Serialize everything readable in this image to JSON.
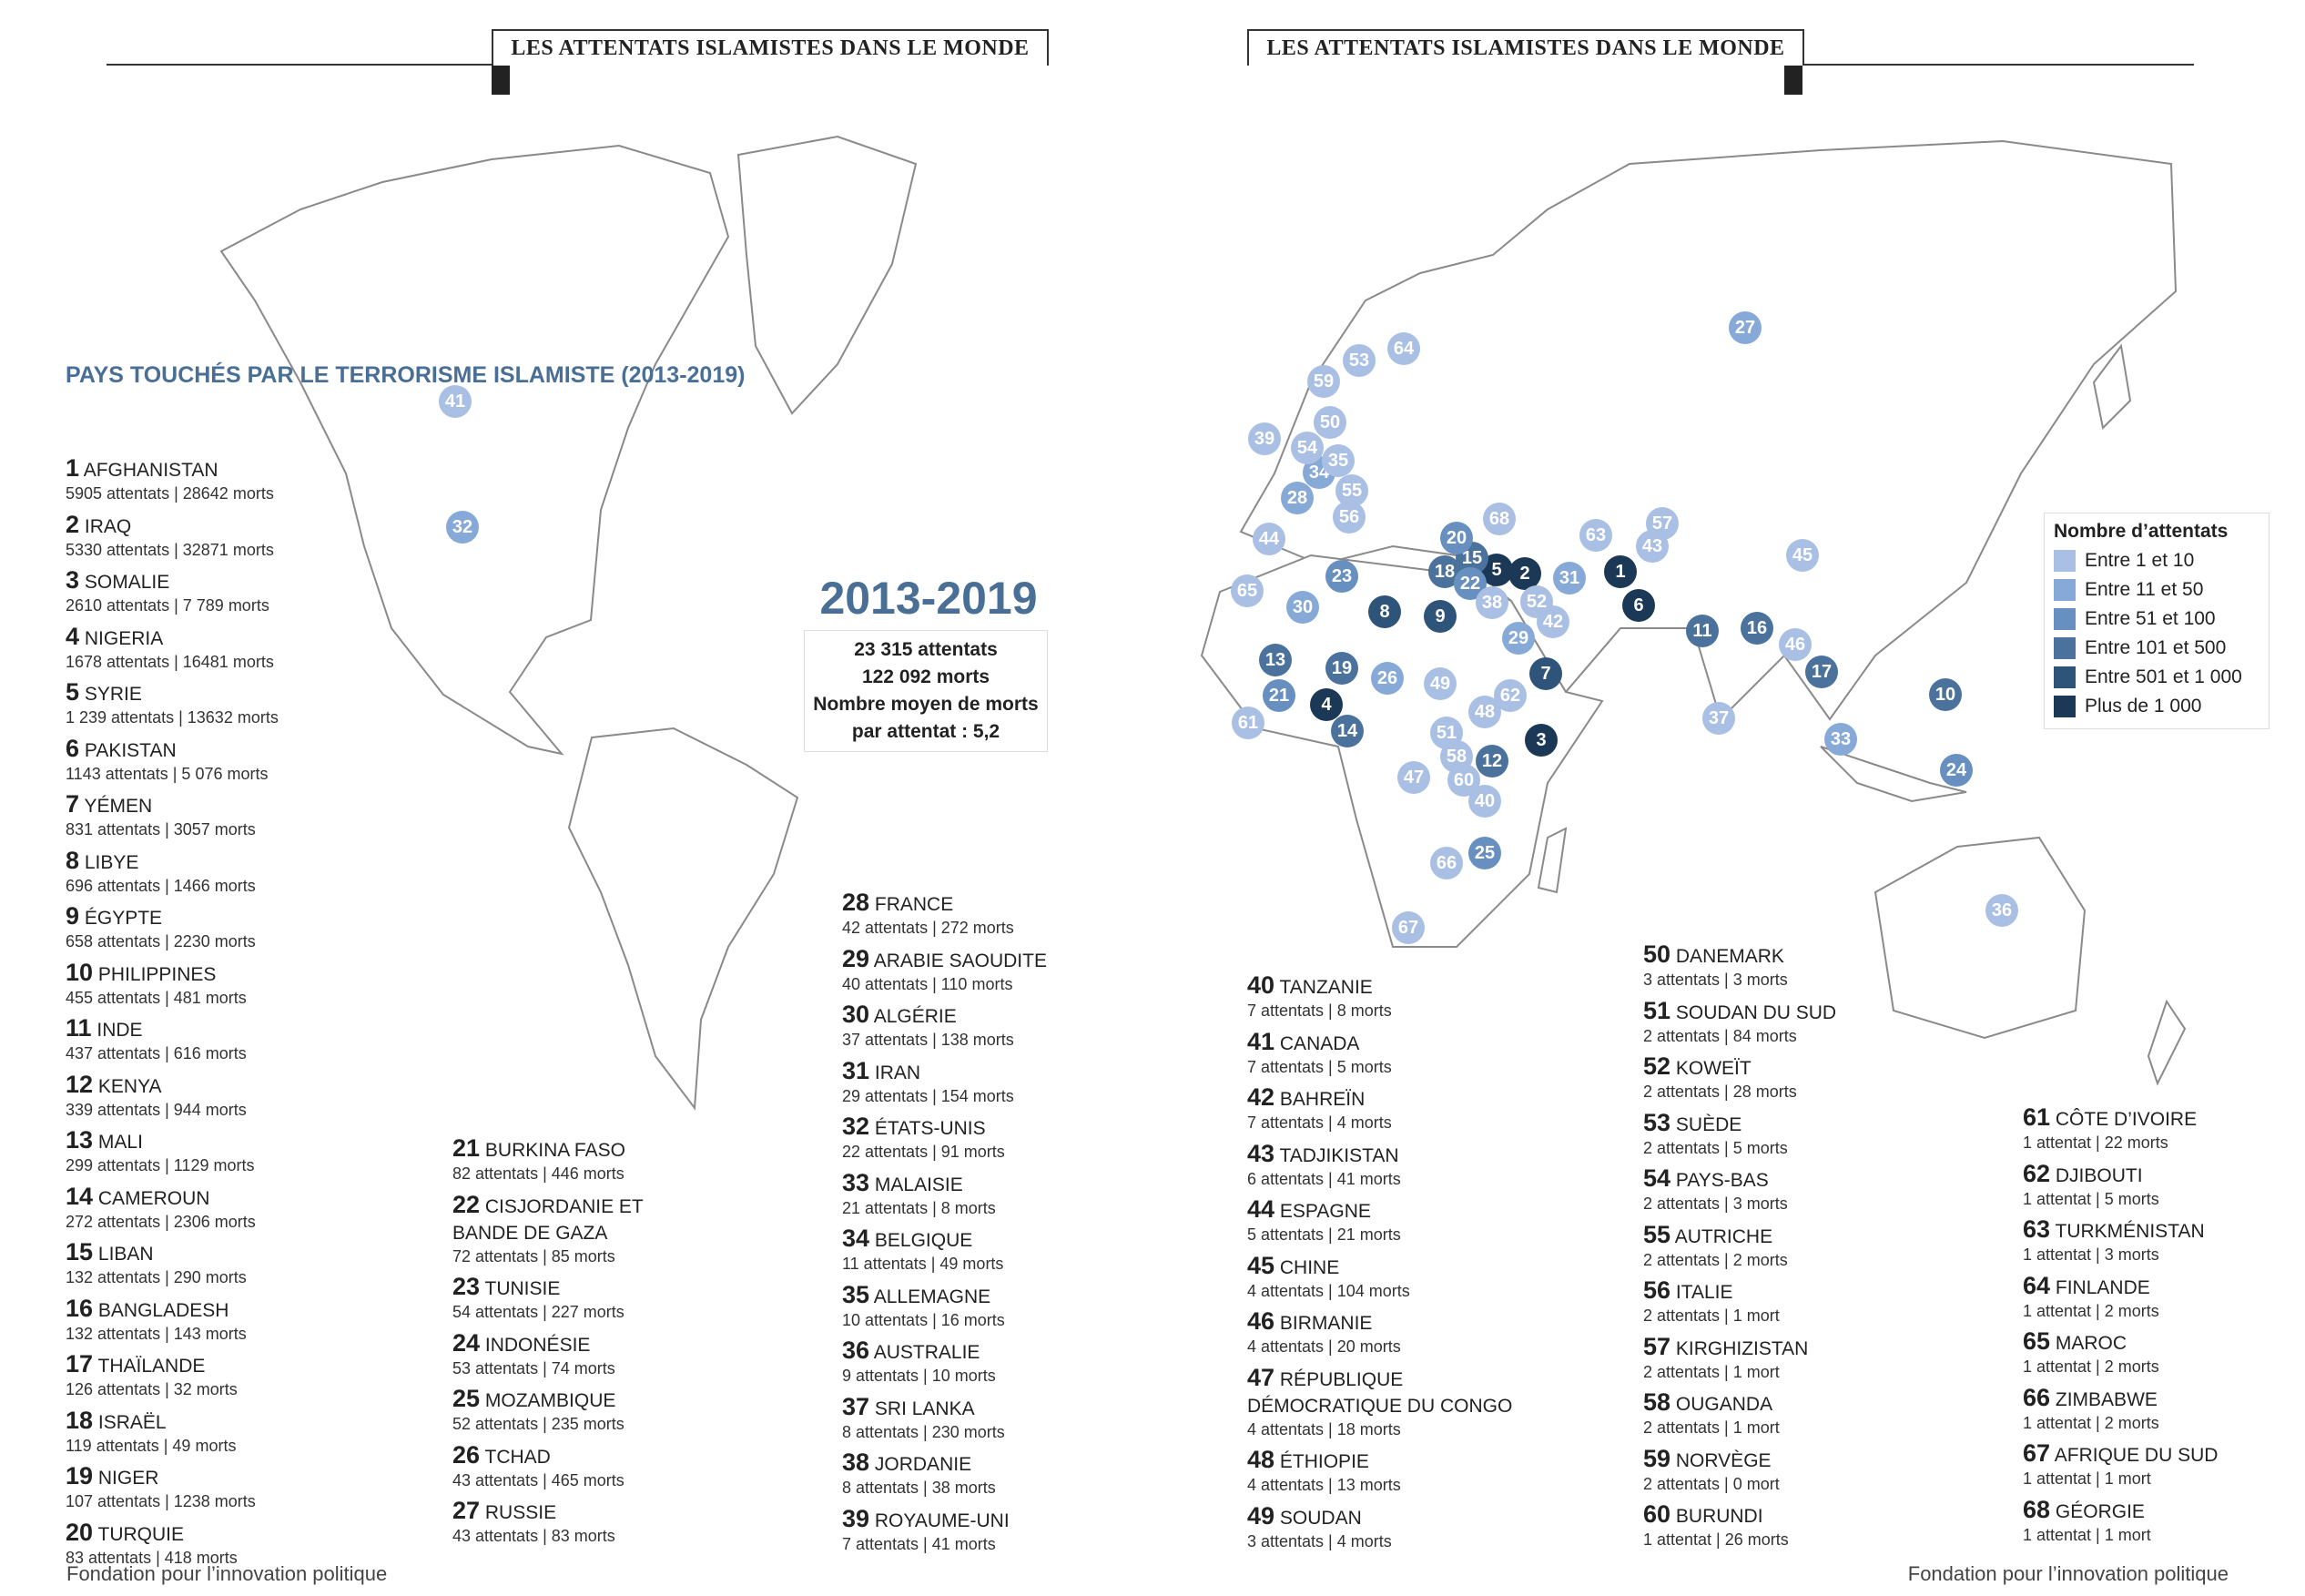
{
  "header": {
    "left_title": "LES ATTENTATS ISLAMISTES DANS LE MONDE",
    "right_title": "LES ATTENTATS ISLAMISTES DANS LE MONDE"
  },
  "subtitle": "Pays touchés par le terrorisme islamiste (2013-2019)",
  "summary": {
    "period": "2013-2019",
    "attacks": "23 315 attentats",
    "deaths": "122 092 morts",
    "average": "Nombre moyen de morts par attentat : 5,2"
  },
  "legend": {
    "title": "Nombre d’attentats",
    "items": [
      {
        "label": "Entre 1 et 10",
        "color": "#a9bfe4"
      },
      {
        "label": "Entre 11 et 50",
        "color": "#86a9d8"
      },
      {
        "label": "Entre 51 et 100",
        "color": "#6790c1"
      },
      {
        "label": "Entre 101 et 500",
        "color": "#4a729c"
      },
      {
        "label": "Entre 501 et 1 000",
        "color": "#2f5479"
      },
      {
        "label": "Plus de 1 000",
        "color": "#1b3857"
      }
    ]
  },
  "countries": [
    {
      "rank": "1",
      "name": "Afghanistan",
      "attacks": 5905,
      "stats": "5905 attentats | 28642 morts"
    },
    {
      "rank": "2",
      "name": "Iraq",
      "attacks": 5330,
      "stats": "5330 attentats | 32871 morts"
    },
    {
      "rank": "3",
      "name": "Somalie",
      "attacks": 2610,
      "stats": "2610 attentats | 7 789 morts"
    },
    {
      "rank": "4",
      "name": "Nigeria",
      "attacks": 1678,
      "stats": "1678 attentats | 16481 morts"
    },
    {
      "rank": "5",
      "name": "Syrie",
      "attacks": 1239,
      "stats": "1 239 attentats | 13632 morts"
    },
    {
      "rank": "6",
      "name": "Pakistan",
      "attacks": 1143,
      "stats": "1143 attentats | 5 076 morts"
    },
    {
      "rank": "7",
      "name": "Yémen",
      "attacks": 831,
      "stats": "831 attentats | 3057 morts"
    },
    {
      "rank": "8",
      "name": "Libye",
      "attacks": 696,
      "stats": "696 attentats | 1466 morts"
    },
    {
      "rank": "9",
      "name": "Égypte",
      "attacks": 658,
      "stats": "658 attentats | 2230 morts"
    },
    {
      "rank": "10",
      "name": "Philippines",
      "attacks": 455,
      "stats": "455 attentats | 481 morts"
    },
    {
      "rank": "11",
      "name": "Inde",
      "attacks": 437,
      "stats": "437 attentats | 616 morts"
    },
    {
      "rank": "12",
      "name": "Kenya",
      "attacks": 339,
      "stats": "339 attentats | 944 morts"
    },
    {
      "rank": "13",
      "name": "Mali",
      "attacks": 299,
      "stats": "299 attentats | 1129 morts"
    },
    {
      "rank": "14",
      "name": "Cameroun",
      "attacks": 272,
      "stats": "272 attentats | 2306 morts"
    },
    {
      "rank": "15",
      "name": "Liban",
      "attacks": 132,
      "stats": "132 attentats | 290 morts"
    },
    {
      "rank": "16",
      "name": "Bangladesh",
      "attacks": 132,
      "stats": "132 attentats | 143 morts"
    },
    {
      "rank": "17",
      "name": "Thaïlande",
      "attacks": 126,
      "stats": "126 attentats | 32 morts"
    },
    {
      "rank": "18",
      "name": "Israël",
      "attacks": 119,
      "stats": "119 attentats | 49 morts"
    },
    {
      "rank": "19",
      "name": "Niger",
      "attacks": 107,
      "stats": "107 attentats | 1238 morts"
    },
    {
      "rank": "20",
      "name": "Turquie",
      "attacks": 83,
      "stats": "83 attentats | 418 morts"
    },
    {
      "rank": "21",
      "name": "Burkina Faso",
      "attacks": 82,
      "stats": "82 attentats | 446 morts"
    },
    {
      "rank": "22",
      "name": "Cisjordanie et bande de Gaza",
      "attacks": 72,
      "stats": "72 attentats | 85 morts"
    },
    {
      "rank": "23",
      "name": "Tunisie",
      "attacks": 54,
      "stats": "54 attentats | 227 morts"
    },
    {
      "rank": "24",
      "name": "Indonésie",
      "attacks": 53,
      "stats": "53 attentats | 74 morts"
    },
    {
      "rank": "25",
      "name": "Mozambique",
      "attacks": 52,
      "stats": "52 attentats | 235 morts"
    },
    {
      "rank": "26",
      "name": "Tchad",
      "attacks": 43,
      "stats": "43 attentats | 465 morts"
    },
    {
      "rank": "27",
      "name": "Russie",
      "attacks": 43,
      "stats": "43 attentats | 83 morts"
    },
    {
      "rank": "28",
      "name": "France",
      "attacks": 42,
      "stats": "42 attentats | 272 morts"
    },
    {
      "rank": "29",
      "name": "Arabie saoudite",
      "attacks": 40,
      "stats": "40 attentats | 110 morts"
    },
    {
      "rank": "30",
      "name": "Algérie",
      "attacks": 37,
      "stats": "37 attentats | 138 morts"
    },
    {
      "rank": "31",
      "name": "Iran",
      "attacks": 29,
      "stats": "29 attentats | 154 morts"
    },
    {
      "rank": "32",
      "name": "États-Unis",
      "attacks": 22,
      "stats": "22 attentats | 91 morts"
    },
    {
      "rank": "33",
      "name": "Malaisie",
      "attacks": 21,
      "stats": "21 attentats | 8 morts"
    },
    {
      "rank": "34",
      "name": "Belgique",
      "attacks": 11,
      "stats": "11 attentats | 49 morts"
    },
    {
      "rank": "35",
      "name": "Allemagne",
      "attacks": 10,
      "stats": "10 attentats | 16 morts"
    },
    {
      "rank": "36",
      "name": "Australie",
      "attacks": 9,
      "stats": "9 attentats | 10 morts"
    },
    {
      "rank": "37",
      "name": "Sri Lanka",
      "attacks": 8,
      "stats": "8 attentats | 230 morts"
    },
    {
      "rank": "38",
      "name": "Jordanie",
      "attacks": 8,
      "stats": "8 attentats | 38 morts"
    },
    {
      "rank": "39",
      "name": "Royaume-Uni",
      "attacks": 7,
      "stats": "7 attentats | 41 morts"
    },
    {
      "rank": "40",
      "name": "Tanzanie",
      "attacks": 7,
      "stats": "7 attentats | 8 morts"
    },
    {
      "rank": "41",
      "name": "Canada",
      "attacks": 7,
      "stats": "7 attentats | 5 morts"
    },
    {
      "rank": "42",
      "name": "Bahreïn",
      "attacks": 7,
      "stats": "7 attentats | 4 morts"
    },
    {
      "rank": "43",
      "name": "Tadjikistan",
      "attacks": 6,
      "stats": "6 attentats | 41 morts"
    },
    {
      "rank": "44",
      "name": "Espagne",
      "attacks": 5,
      "stats": "5 attentats | 21 morts"
    },
    {
      "rank": "45",
      "name": "Chine",
      "attacks": 4,
      "stats": "4 attentats | 104 morts"
    },
    {
      "rank": "46",
      "name": "Birmanie",
      "attacks": 4,
      "stats": "4 attentats | 20 morts"
    },
    {
      "rank": "47",
      "name": "République démocratique du Congo",
      "attacks": 4,
      "stats": "4 attentats | 18 morts"
    },
    {
      "rank": "48",
      "name": "Éthiopie",
      "attacks": 4,
      "stats": "4 attentats | 13 morts"
    },
    {
      "rank": "49",
      "name": "Soudan",
      "attacks": 3,
      "stats": "3 attentats | 4 morts"
    },
    {
      "rank": "50",
      "name": "Danemark",
      "attacks": 3,
      "stats": "3 attentats | 3 morts"
    },
    {
      "rank": "51",
      "name": "Soudan du Sud",
      "attacks": 2,
      "stats": "2 attentats | 84 morts"
    },
    {
      "rank": "52",
      "name": "Koweït",
      "attacks": 2,
      "stats": "2 attentats | 28 morts"
    },
    {
      "rank": "53",
      "name": "Suède",
      "attacks": 2,
      "stats": "2 attentats | 5 morts"
    },
    {
      "rank": "54",
      "name": "Pays-Bas",
      "attacks": 2,
      "stats": "2 attentats | 3 morts"
    },
    {
      "rank": "55",
      "name": "Autriche",
      "attacks": 2,
      "stats": "2 attentats | 2 morts"
    },
    {
      "rank": "56",
      "name": "Italie",
      "attacks": 2,
      "stats": "2 attentats | 1 mort"
    },
    {
      "rank": "57",
      "name": "Kirghizistan",
      "attacks": 2,
      "stats": "2 attentats | 1 mort"
    },
    {
      "rank": "58",
      "name": "Ouganda",
      "attacks": 2,
      "stats": "2 attentats | 1 mort"
    },
    {
      "rank": "59",
      "name": "Norvège",
      "attacks": 2,
      "stats": "2 attentats | 0 mort"
    },
    {
      "rank": "60",
      "name": "Burundi",
      "attacks": 1,
      "stats": "1 attentat | 26 morts"
    },
    {
      "rank": "61",
      "name": "Côte d’Ivoire",
      "attacks": 1,
      "stats": "1 attentat | 22 morts"
    },
    {
      "rank": "62",
      "name": "Djibouti",
      "attacks": 1,
      "stats": "1 attentat | 5 morts"
    },
    {
      "rank": "63",
      "name": "Turkménistan",
      "attacks": 1,
      "stats": "1 attentat | 3 morts"
    },
    {
      "rank": "64",
      "name": "Finlande",
      "attacks": 1,
      "stats": "1 attentat | 2 morts"
    },
    {
      "rank": "65",
      "name": "Maroc",
      "attacks": 1,
      "stats": "1 attentat | 2 morts"
    },
    {
      "rank": "66",
      "name": "Zimbabwe",
      "attacks": 1,
      "stats": "1 attentat | 2 morts"
    },
    {
      "rank": "67",
      "name": "Afrique du Sud",
      "attacks": 1,
      "stats": "1 attentat | 1 mort"
    },
    {
      "rank": "68",
      "name": "Géorgie",
      "attacks": 1,
      "stats": "1 attentat | 1 mort"
    }
  ],
  "footer": {
    "left": "Fondation pour l’innovation politique",
    "right": "Fondation pour l’innovation politique"
  }
}
